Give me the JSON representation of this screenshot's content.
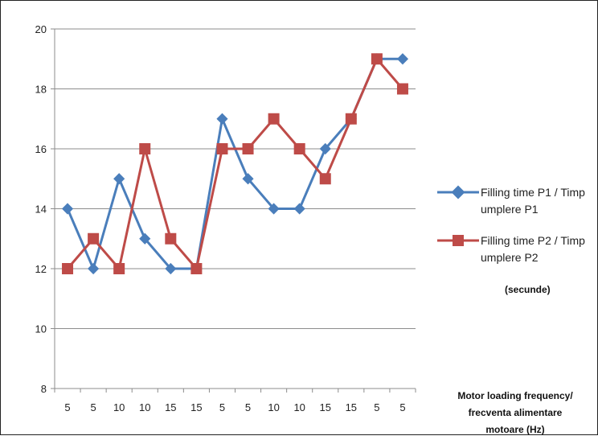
{
  "chart_data": {
    "type": "line",
    "categories": [
      "5",
      "5",
      "10",
      "10",
      "15",
      "15",
      "5",
      "5",
      "10",
      "10",
      "15",
      "15",
      "5",
      "5"
    ],
    "ylim": [
      8,
      20
    ],
    "yticks": [
      "8",
      "10",
      "12",
      "14",
      "16",
      "18",
      "20"
    ],
    "grid": true,
    "legend_placement": "right",
    "series": [
      {
        "name_line1": "Filling time P1 / Timp",
        "name_line2": "umplere P1",
        "color": "#4a7ebb",
        "marker": "diamond",
        "values": [
          14,
          12,
          15,
          13,
          12,
          12,
          17,
          15,
          14,
          14,
          16,
          17,
          19,
          19
        ]
      },
      {
        "name_line1": "Filling time P2 / Timp",
        "name_line2": "umplere P2",
        "color": "#be4b48",
        "marker": "square",
        "values": [
          12,
          13,
          12,
          16,
          13,
          12,
          16,
          16,
          17,
          16,
          15,
          17,
          19,
          18
        ]
      }
    ],
    "unit_note": "(secunde)",
    "xlabel_lines": [
      "Motor loading frequency/",
      "frecventa alimentare",
      "motoare  (Hz)"
    ]
  }
}
